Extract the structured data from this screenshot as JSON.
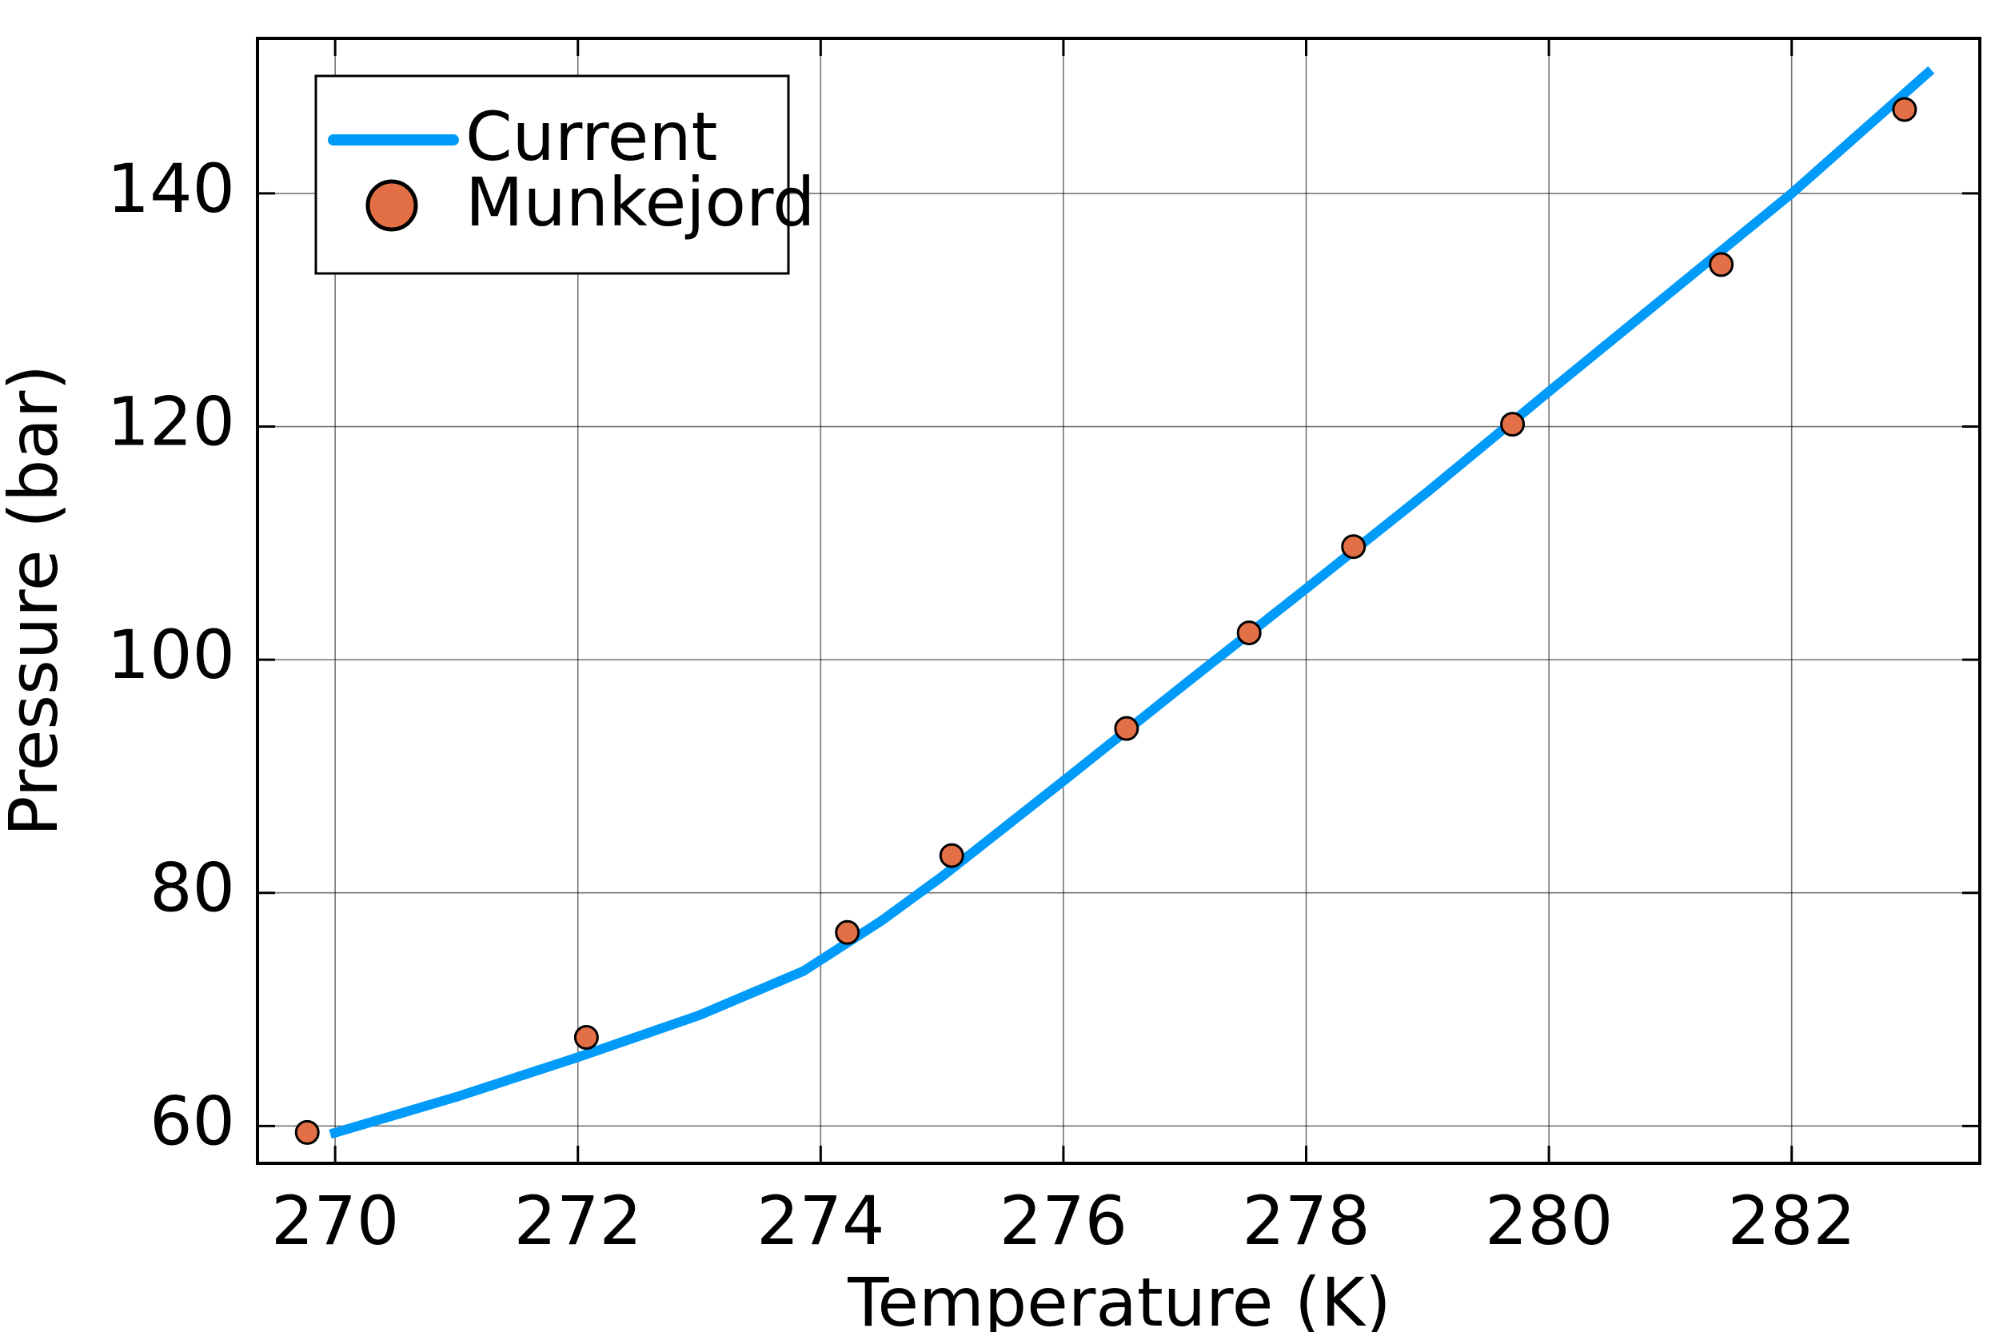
{
  "chart_data": {
    "type": "line",
    "xlabel": "Temperature (K)",
    "ylabel": "Pressure (bar)",
    "xlim": [
      269.36,
      283.55
    ],
    "xticks": [
      270,
      272,
      274,
      276,
      278,
      280,
      282
    ],
    "ylim": [
      56.8,
      153.3
    ],
    "yticks": [
      60,
      80,
      100,
      120,
      140
    ],
    "grid": true,
    "legend": "top-left",
    "series": [
      {
        "name": "Current",
        "kind": "line",
        "color": "#009af9",
        "x": [
          269.96,
          271,
          272,
          273,
          273.86,
          274.5,
          275,
          276,
          277,
          278,
          279,
          280,
          281,
          282,
          283.15
        ],
        "values": [
          59.3,
          62.5,
          65.9,
          69.5,
          73.3,
          77.6,
          81.4,
          89.6,
          97.9,
          106.1,
          114.4,
          123,
          131.5,
          140,
          150.6
        ]
      },
      {
        "name": "Munkejord",
        "kind": "scatter",
        "color": "#e26f46",
        "x": [
          269.77,
          272.07,
          274.22,
          275.08,
          276.52,
          277.53,
          278.39,
          279.7,
          281.42,
          282.93
        ],
        "values": [
          59.45,
          67.6,
          76.6,
          83.2,
          94.1,
          102.3,
          109.7,
          120.2,
          133.9,
          147.2
        ]
      }
    ]
  }
}
